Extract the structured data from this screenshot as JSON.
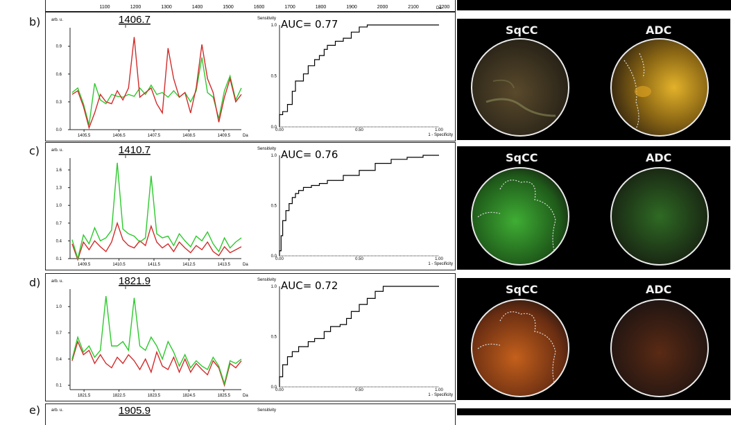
{
  "top_axis": {
    "ticks": [
      "1100",
      "1200",
      "1300",
      "1400",
      "1500",
      "1600",
      "1700",
      "1800",
      "1900",
      "2000",
      "2100",
      "2200"
    ],
    "unit": "Da"
  },
  "colors": {
    "series_a": "#d22a2a",
    "series_b": "#2cc92c",
    "roc_line": "#000000",
    "sqcc_green": "#2fbf34",
    "adc_yellow": "#d9a01c",
    "sqcc_orange": "#c45a1a"
  },
  "image_labels": {
    "left": "SqCC",
    "right": "ADC"
  },
  "rows": [
    {
      "label": "b)",
      "peak": "1406.7",
      "auc": "AUC= 0.77",
      "spectrum": {
        "ylabel": "arb. u.",
        "xlabel": "Da",
        "yticks": [
          "0.9",
          "0.6",
          "0.3",
          "0.0"
        ],
        "xticks": [
          "1405.5",
          "1406.5",
          "1407.5",
          "1408.5",
          "1409.5"
        ]
      },
      "roc": {
        "ylabel": "Sensitivity",
        "xlabel": "1 - Specificity",
        "yticks": [
          "1.0",
          "0.5",
          "0.0"
        ],
        "xticks": [
          "0.00",
          "0.50",
          "1.00"
        ]
      }
    },
    {
      "label": "c)",
      "peak": "1410.7",
      "auc": "AUC= 0.76",
      "spectrum": {
        "ylabel": "arb. u.",
        "xlabel": "Da",
        "yticks": [
          "1.6",
          "1.3",
          "1.0",
          "0.7",
          "0.4",
          "0.1"
        ],
        "xticks": [
          "1409.5",
          "1410.5",
          "1411.5",
          "1412.5",
          "1413.5"
        ]
      },
      "roc": {
        "ylabel": "Sensitivity",
        "xlabel": "1 - Specificity",
        "yticks": [
          "1.0",
          "0.5",
          "0.0"
        ],
        "xticks": [
          "0.00",
          "0.50",
          "1.00"
        ]
      }
    },
    {
      "label": "d)",
      "peak": "1821.9",
      "auc": "AUC= 0.72",
      "spectrum": {
        "ylabel": "arb. u.",
        "xlabel": "Da",
        "yticks": [
          "1.0",
          "0.7",
          "0.4",
          "0.1"
        ],
        "xticks": [
          "1821.5",
          "1822.5",
          "1823.5",
          "1824.5",
          "1825.5"
        ]
      },
      "roc": {
        "ylabel": "Sensitivity",
        "xlabel": "1 - Specificity",
        "yticks": [
          "1.0",
          "0.5",
          "0.0"
        ],
        "xticks": [
          "0.00",
          "0.50",
          "1.00"
        ]
      }
    },
    {
      "label": "e)",
      "peak": "1905.9",
      "spectrum": {
        "ylabel": "arb. u."
      },
      "roc": {
        "ylabel": "Sensitivity"
      }
    }
  ],
  "chart_data": [
    {
      "type": "line",
      "ylim": [
        0,
        1.1
      ],
      "xlim": [
        1405.1,
        1410.0
      ],
      "series": [
        {
          "values": [
            0.38,
            0.42,
            0.25,
            0.02,
            0.18,
            0.38,
            0.3,
            0.28,
            0.42,
            0.32,
            0.45,
            1.0,
            0.35,
            0.4,
            0.45,
            0.28,
            0.18,
            0.88,
            0.55,
            0.35,
            0.4,
            0.18,
            0.45,
            0.92,
            0.55,
            0.4,
            0.08,
            0.35,
            0.55,
            0.3,
            0.38
          ]
        },
        {
          "values": [
            0.4,
            0.45,
            0.28,
            0.05,
            0.5,
            0.32,
            0.28,
            0.38,
            0.36,
            0.35,
            0.38,
            0.36,
            0.45,
            0.38,
            0.48,
            0.38,
            0.4,
            0.35,
            0.42,
            0.35,
            0.4,
            0.3,
            0.42,
            0.78,
            0.4,
            0.35,
            0.12,
            0.42,
            0.58,
            0.32,
            0.45
          ]
        }
      ]
    },
    {
      "type": "line",
      "ylim": [
        0.1,
        1.8
      ],
      "xlim": [
        1409.1,
        1414.0
      ],
      "series": [
        {
          "values": [
            0.35,
            0.08,
            0.38,
            0.25,
            0.4,
            0.3,
            0.22,
            0.38,
            0.7,
            0.42,
            0.32,
            0.28,
            0.4,
            0.32,
            0.65,
            0.38,
            0.28,
            0.35,
            0.22,
            0.38,
            0.28,
            0.2,
            0.32,
            0.25,
            0.38,
            0.22,
            0.15,
            0.3,
            0.2,
            0.25,
            0.3
          ]
        },
        {
          "values": [
            0.42,
            0.1,
            0.5,
            0.35,
            0.62,
            0.4,
            0.45,
            0.58,
            1.72,
            0.6,
            0.52,
            0.48,
            0.38,
            0.45,
            1.5,
            0.52,
            0.45,
            0.48,
            0.32,
            0.52,
            0.4,
            0.3,
            0.48,
            0.4,
            0.55,
            0.35,
            0.22,
            0.45,
            0.28,
            0.38,
            0.45
          ]
        }
      ]
    },
    {
      "type": "line",
      "ylim": [
        0.05,
        1.2
      ],
      "xlim": [
        1821.1,
        1826.0
      ],
      "series": [
        {
          "values": [
            0.38,
            0.6,
            0.45,
            0.5,
            0.35,
            0.45,
            0.35,
            0.3,
            0.42,
            0.35,
            0.45,
            0.38,
            0.28,
            0.4,
            0.25,
            0.48,
            0.32,
            0.28,
            0.42,
            0.25,
            0.4,
            0.25,
            0.35,
            0.28,
            0.22,
            0.38,
            0.3,
            0.1,
            0.35,
            0.3,
            0.38
          ]
        },
        {
          "values": [
            0.4,
            0.65,
            0.48,
            0.55,
            0.42,
            0.5,
            1.12,
            0.55,
            0.55,
            0.6,
            0.5,
            1.1,
            0.55,
            0.5,
            0.65,
            0.55,
            0.4,
            0.6,
            0.48,
            0.32,
            0.45,
            0.3,
            0.38,
            0.32,
            0.28,
            0.42,
            0.32,
            0.12,
            0.38,
            0.35,
            0.4
          ]
        }
      ]
    },
    {
      "type": "line",
      "xlim": [
        0,
        1
      ],
      "ylim": [
        0,
        1
      ],
      "x": [
        0,
        0.02,
        0.05,
        0.08,
        0.1,
        0.15,
        0.18,
        0.22,
        0.25,
        0.28,
        0.3,
        0.35,
        0.4,
        0.45,
        0.5,
        0.55,
        0.6,
        0.7,
        0.8,
        1.0
      ],
      "y": [
        0,
        0.12,
        0.15,
        0.22,
        0.35,
        0.45,
        0.52,
        0.6,
        0.66,
        0.7,
        0.76,
        0.8,
        0.84,
        0.87,
        0.93,
        0.98,
        1.0,
        1.0,
        1.0,
        1.0
      ]
    },
    {
      "type": "line",
      "xlim": [
        0,
        1
      ],
      "ylim": [
        0,
        1
      ],
      "x": [
        0,
        0.01,
        0.02,
        0.04,
        0.06,
        0.08,
        0.1,
        0.12,
        0.15,
        0.2,
        0.25,
        0.3,
        0.4,
        0.5,
        0.6,
        0.7,
        0.8,
        0.9,
        1.0
      ],
      "y": [
        0,
        0.05,
        0.2,
        0.35,
        0.45,
        0.52,
        0.58,
        0.62,
        0.65,
        0.68,
        0.7,
        0.72,
        0.75,
        0.8,
        0.85,
        0.92,
        0.96,
        0.98,
        1.0
      ]
    },
    {
      "type": "line",
      "xlim": [
        0,
        1
      ],
      "ylim": [
        0,
        1
      ],
      "x": [
        0,
        0.02,
        0.05,
        0.08,
        0.12,
        0.18,
        0.22,
        0.28,
        0.32,
        0.38,
        0.42,
        0.45,
        0.5,
        0.55,
        0.6,
        0.65,
        0.75,
        0.85,
        1.0
      ],
      "y": [
        0,
        0.1,
        0.22,
        0.3,
        0.35,
        0.4,
        0.45,
        0.48,
        0.55,
        0.6,
        0.62,
        0.68,
        0.75,
        0.82,
        0.88,
        0.95,
        1.0,
        1.0,
        1.0
      ]
    }
  ]
}
